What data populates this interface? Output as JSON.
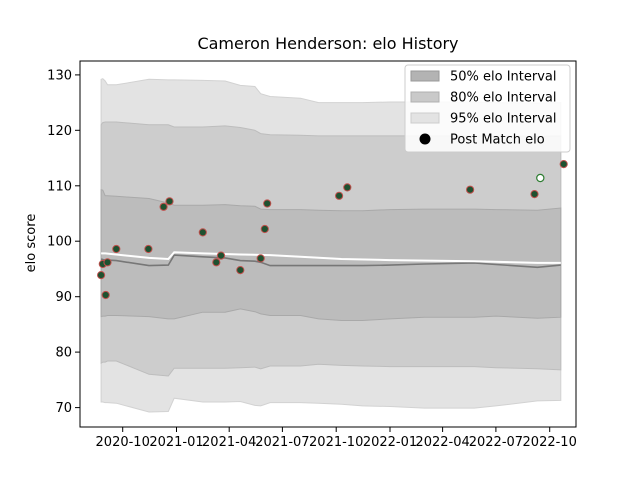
{
  "chart_data": {
    "type": "line",
    "title": "Cameron Henderson: elo History",
    "xlabel": "",
    "ylabel": "elo score",
    "x_axis": "date",
    "xlim": [
      "2020-07-20",
      "2022-11-15"
    ],
    "ylim": [
      66.5,
      132.5
    ],
    "xticks": [
      {
        "date": "2020-10-01",
        "label": "2020-10"
      },
      {
        "date": "2021-01-01",
        "label": "2021-01"
      },
      {
        "date": "2021-04-01",
        "label": "2021-04"
      },
      {
        "date": "2021-07-01",
        "label": "2021-07"
      },
      {
        "date": "2021-10-01",
        "label": "2021-10"
      },
      {
        "date": "2022-01-01",
        "label": "2022-01"
      },
      {
        "date": "2022-04-01",
        "label": "2022-04"
      },
      {
        "date": "2022-07-01",
        "label": "2022-07"
      },
      {
        "date": "2022-10-01",
        "label": "2022-10"
      }
    ],
    "yticks": [
      70,
      80,
      90,
      100,
      110,
      120,
      130
    ],
    "grid": false,
    "legend_position": "top-right",
    "legend": [
      {
        "label": "50% elo Interval",
        "kind": "band",
        "color": "#b3b3b3"
      },
      {
        "label": "80% elo Interval",
        "kind": "band",
        "color": "#c9c9c9"
      },
      {
        "label": "95% elo Interval",
        "kind": "band",
        "color": "#e3e3e3"
      },
      {
        "label": "Post Match elo",
        "kind": "marker",
        "color": "#000000"
      }
    ],
    "dates": [
      "2020-08-25",
      "2020-08-28",
      "2020-09-01",
      "2020-09-05",
      "2020-09-20",
      "2020-11-15",
      "2020-12-18",
      "2020-12-28",
      "2021-02-15",
      "2021-03-25",
      "2021-04-20",
      "2021-05-15",
      "2021-05-25",
      "2021-06-10",
      "2021-08-01",
      "2021-09-01",
      "2021-10-10",
      "2021-11-15",
      "2022-01-01",
      "2022-03-01",
      "2022-05-25",
      "2022-07-01",
      "2022-09-10",
      "2022-10-20"
    ],
    "bands": {
      "p95_upper": [
        129.2,
        129.3,
        128.9,
        128.2,
        128.2,
        129.2,
        129.1,
        129.1,
        129.0,
        128.9,
        128.1,
        127.9,
        126.6,
        126.1,
        125.8,
        125.0,
        125.0,
        125.0,
        125.1,
        125.1,
        125.1,
        125.0,
        124.9,
        125.0
      ],
      "p80_upper": [
        121.0,
        121.4,
        121.5,
        121.5,
        121.5,
        121.0,
        121.0,
        120.6,
        120.6,
        120.8,
        120.5,
        120.0,
        119.4,
        119.2,
        119.1,
        119.0,
        119.0,
        119.0,
        119.0,
        119.0,
        119.0,
        119.0,
        118.9,
        119.0
      ],
      "p50_upper": [
        109.3,
        109.2,
        108.2,
        108.2,
        108.1,
        107.7,
        106.9,
        106.5,
        106.5,
        106.6,
        106.4,
        106.3,
        105.8,
        105.7,
        105.7,
        105.6,
        105.5,
        105.5,
        105.7,
        105.8,
        105.8,
        105.7,
        105.6,
        106.0
      ],
      "mean": [
        96.8,
        96.7,
        96.6,
        96.6,
        96.5,
        95.6,
        95.7,
        97.5,
        97.2,
        97.0,
        96.5,
        96.4,
        96.2,
        95.6,
        95.6,
        95.6,
        95.6,
        95.6,
        95.7,
        95.9,
        96.1,
        95.8,
        95.3,
        95.7
      ],
      "p50_lower": [
        86.4,
        86.5,
        86.5,
        86.6,
        86.6,
        86.4,
        86.0,
        86.0,
        87.2,
        87.2,
        87.8,
        87.3,
        86.9,
        86.6,
        86.6,
        86.0,
        85.7,
        85.7,
        86.0,
        86.3,
        86.3,
        86.5,
        86.1,
        86.3
      ],
      "p80_lower": [
        78.0,
        78.2,
        78.2,
        78.4,
        78.4,
        76.0,
        75.7,
        77.1,
        77.1,
        77.1,
        77.2,
        77.3,
        77.0,
        77.5,
        77.5,
        77.8,
        77.6,
        77.5,
        77.4,
        77.4,
        77.4,
        77.2,
        77.0,
        76.8
      ],
      "p95_lower": [
        71.0,
        71.0,
        70.9,
        70.9,
        70.8,
        69.2,
        69.3,
        71.7,
        71.0,
        71.0,
        71.1,
        70.4,
        70.3,
        70.9,
        70.9,
        70.8,
        70.6,
        70.3,
        70.2,
        69.9,
        69.9,
        70.3,
        71.2,
        71.3
      ]
    },
    "forecast_line": {
      "dates": [
        "2020-08-25",
        "2020-09-01",
        "2020-11-15",
        "2020-12-18",
        "2020-12-28",
        "2021-02-15",
        "2021-04-20",
        "2021-06-10",
        "2021-08-01",
        "2021-10-10",
        "2022-01-01",
        "2022-05-25",
        "2022-09-10",
        "2022-10-20"
      ],
      "values": [
        97.8,
        97.8,
        97.0,
        96.8,
        98.0,
        97.8,
        97.6,
        97.5,
        97.2,
        96.8,
        96.6,
        96.4,
        96.1,
        96.1
      ],
      "color": "#ffffff"
    },
    "post_match": {
      "dates": [
        "2020-08-25",
        "2020-08-28",
        "2020-09-02",
        "2020-09-05",
        "2020-09-20",
        "2020-11-14",
        "2020-12-10",
        "2020-12-20",
        "2021-02-15",
        "2021-03-10",
        "2021-03-18",
        "2021-04-20",
        "2021-05-25",
        "2021-06-01",
        "2021-06-05",
        "2021-10-06",
        "2021-10-20",
        "2022-05-18",
        "2022-09-05",
        "2022-10-25"
      ],
      "values": [
        93.9,
        95.9,
        90.3,
        96.2,
        98.6,
        98.6,
        106.2,
        107.2,
        101.6,
        96.2,
        97.4,
        94.8,
        96.9,
        102.2,
        106.8,
        108.2,
        109.7,
        109.3,
        108.5,
        113.9
      ],
      "fill": "#1e5130",
      "edge": "#c0504d"
    },
    "latest": {
      "date": "2022-09-15",
      "value": 111.4,
      "fill": "#ffffff",
      "edge": "#2e7d32"
    }
  }
}
